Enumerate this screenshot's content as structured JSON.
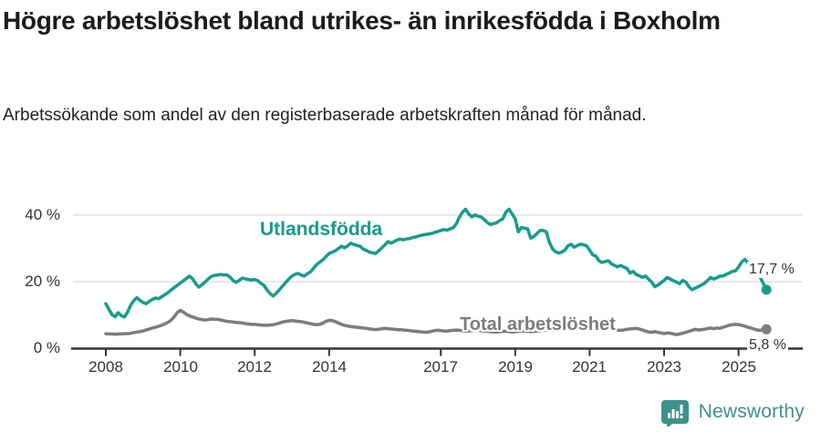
{
  "title": "Högre arbetslöshet bland utrikes- än inrikesfödda i Boxholm",
  "subtitle": "Arbetssökande som andel av den registerbaserade arbetskraften månad för månad.",
  "footer": {
    "brand": "Newsworthy"
  },
  "colors": {
    "series_utlandsfodda": "#179b8c",
    "series_total": "#7c7c7c",
    "gridline": "#e0e0e0",
    "axis": "#333333",
    "title_text": "#1b1b1b",
    "brand_teal": "#3e918b"
  },
  "chart_data": {
    "type": "line",
    "x_unit": "monthly",
    "x_start_year": 2008,
    "x_end_label_position": "2025 (late)",
    "x_tick_labels": [
      "2008",
      "2010",
      "2012",
      "2014",
      "2017",
      "2019",
      "2021",
      "2023",
      "2025"
    ],
    "x_tick_years": [
      2008,
      2010,
      2012,
      2014,
      2017,
      2019,
      2021,
      2023,
      2025
    ],
    "y_tick_labels": [
      "0 %",
      "20 %",
      "40 %"
    ],
    "ylim": [
      0,
      44
    ],
    "grid": "horizontal-only",
    "legend_position": "inline-labels",
    "series": [
      {
        "name": "Utlandsfödda",
        "color": "#179b8c",
        "end_label": "17,7 %",
        "end_value": 17.7,
        "values": [
          13.5,
          11.8,
          10.2,
          9.6,
          10.8,
          9.9,
          9.5,
          11.0,
          13.0,
          14.4,
          15.3,
          14.5,
          13.9,
          13.5,
          14.2,
          14.8,
          15.2,
          15.0,
          15.6,
          16.2,
          16.8,
          17.6,
          18.3,
          19.0,
          19.7,
          20.4,
          21.1,
          21.8,
          21.0,
          19.5,
          18.5,
          19.2,
          20.0,
          20.9,
          21.7,
          22.0,
          22.1,
          22.3,
          22.1,
          22.2,
          21.5,
          20.5,
          19.9,
          20.5,
          21.2,
          21.0,
          20.8,
          20.6,
          20.8,
          20.4,
          19.6,
          19.0,
          17.6,
          16.5,
          15.8,
          16.7,
          17.7,
          18.8,
          19.9,
          20.9,
          21.8,
          22.3,
          22.6,
          22.1,
          21.8,
          22.5,
          23.1,
          24.2,
          25.3,
          26.0,
          26.7,
          27.7,
          28.6,
          29.0,
          29.4,
          30.1,
          30.8,
          30.3,
          30.9,
          31.7,
          31.3,
          31.0,
          30.8,
          29.9,
          29.5,
          29.0,
          28.8,
          28.6,
          29.4,
          30.3,
          31.2,
          32.2,
          31.7,
          32.2,
          32.7,
          32.9,
          32.7,
          33.0,
          33.1,
          33.4,
          33.6,
          33.9,
          34.1,
          34.3,
          34.4,
          34.6,
          34.9,
          35.2,
          35.5,
          35.8,
          35.6,
          36.0,
          36.3,
          37.5,
          39.5,
          41.0,
          41.9,
          40.5,
          39.6,
          40.2,
          39.8,
          39.6,
          38.8,
          37.9,
          37.3,
          37.6,
          37.8,
          38.5,
          39.0,
          41.0,
          41.9,
          40.5,
          39.0,
          35.1,
          36.4,
          36.2,
          36.0,
          33.2,
          33.7,
          34.6,
          35.5,
          35.5,
          35.1,
          32.0,
          30.0,
          29.1,
          28.7,
          29.0,
          29.6,
          30.9,
          31.4,
          30.5,
          31.0,
          31.4,
          31.2,
          30.9,
          29.6,
          28.2,
          27.8,
          26.4,
          25.9,
          26.2,
          26.4,
          25.5,
          25.0,
          24.6,
          25.0,
          24.5,
          24.1,
          22.7,
          23.2,
          22.3,
          21.9,
          21.4,
          21.8,
          20.9,
          20.0,
          18.6,
          19.1,
          19.8,
          20.5,
          21.4,
          20.9,
          20.4,
          20.0,
          19.5,
          20.5,
          20.0,
          18.6,
          17.7,
          18.2,
          18.6,
          19.1,
          19.6,
          20.5,
          21.4,
          20.9,
          21.3,
          21.8,
          21.8,
          22.3,
          22.7,
          23.2,
          23.4,
          24.5,
          26.0,
          26.8,
          25.9,
          23.6,
          22.3,
          22.7,
          21.4,
          19.5,
          17.7
        ]
      },
      {
        "name": "Total arbetslöshet",
        "color": "#7c7c7c",
        "end_label": "5,8 %",
        "end_value": 5.8,
        "values": [
          4.5,
          4.4,
          4.4,
          4.3,
          4.4,
          4.4,
          4.5,
          4.5,
          4.6,
          4.8,
          5.0,
          5.1,
          5.3,
          5.6,
          5.9,
          6.2,
          6.4,
          6.7,
          7.0,
          7.4,
          7.9,
          8.5,
          9.5,
          10.8,
          11.5,
          11.0,
          10.3,
          9.8,
          9.5,
          9.2,
          8.9,
          8.7,
          8.6,
          8.7,
          8.9,
          8.8,
          8.8,
          8.6,
          8.4,
          8.2,
          8.1,
          8.0,
          7.9,
          7.8,
          7.7,
          7.5,
          7.4,
          7.3,
          7.3,
          7.2,
          7.1,
          7.0,
          7.0,
          7.1,
          7.2,
          7.4,
          7.7,
          8.0,
          8.2,
          8.3,
          8.4,
          8.3,
          8.2,
          8.1,
          7.9,
          7.7,
          7.5,
          7.3,
          7.2,
          7.3,
          7.7,
          8.2,
          8.5,
          8.4,
          8.1,
          7.7,
          7.3,
          7.0,
          6.8,
          6.6,
          6.5,
          6.4,
          6.3,
          6.2,
          6.1,
          5.9,
          5.8,
          5.7,
          5.8,
          6.0,
          6.1,
          6.0,
          5.9,
          5.8,
          5.7,
          5.7,
          5.6,
          5.5,
          5.4,
          5.3,
          5.2,
          5.1,
          5.0,
          4.9,
          5.0,
          5.2,
          5.4,
          5.5,
          5.4,
          5.3,
          5.3,
          5.4,
          5.5,
          5.6,
          5.5,
          5.4,
          5.3,
          5.3,
          5.4,
          5.5,
          5.5,
          5.4,
          5.3,
          5.2,
          5.1,
          5.0,
          5.0,
          5.1,
          5.2,
          5.2,
          5.1,
          5.0,
          5.1,
          5.2,
          5.3,
          5.3,
          5.2,
          5.1,
          5.2,
          5.3,
          5.4,
          5.5,
          5.5,
          5.6,
          5.8,
          6.0,
          6.3,
          6.6,
          6.8,
          6.9,
          6.8,
          6.7,
          6.6,
          6.5,
          6.4,
          6.3,
          6.4,
          6.3,
          6.2,
          6.1,
          6.0,
          5.9,
          5.8,
          5.7,
          5.6,
          5.5,
          5.5,
          5.6,
          5.8,
          5.9,
          6.0,
          6.1,
          5.9,
          5.6,
          5.3,
          5.0,
          4.9,
          5.1,
          4.9,
          4.7,
          4.5,
          4.7,
          4.6,
          4.4,
          4.2,
          4.4,
          4.6,
          4.9,
          5.2,
          5.5,
          5.8,
          5.6,
          5.7,
          5.8,
          6.0,
          6.2,
          6.0,
          6.2,
          6.1,
          6.4,
          6.7,
          7.0,
          7.2,
          7.3,
          7.2,
          7.0,
          6.8,
          6.4,
          6.2,
          5.9,
          5.6,
          5.5,
          5.7,
          5.8
        ]
      }
    ]
  }
}
